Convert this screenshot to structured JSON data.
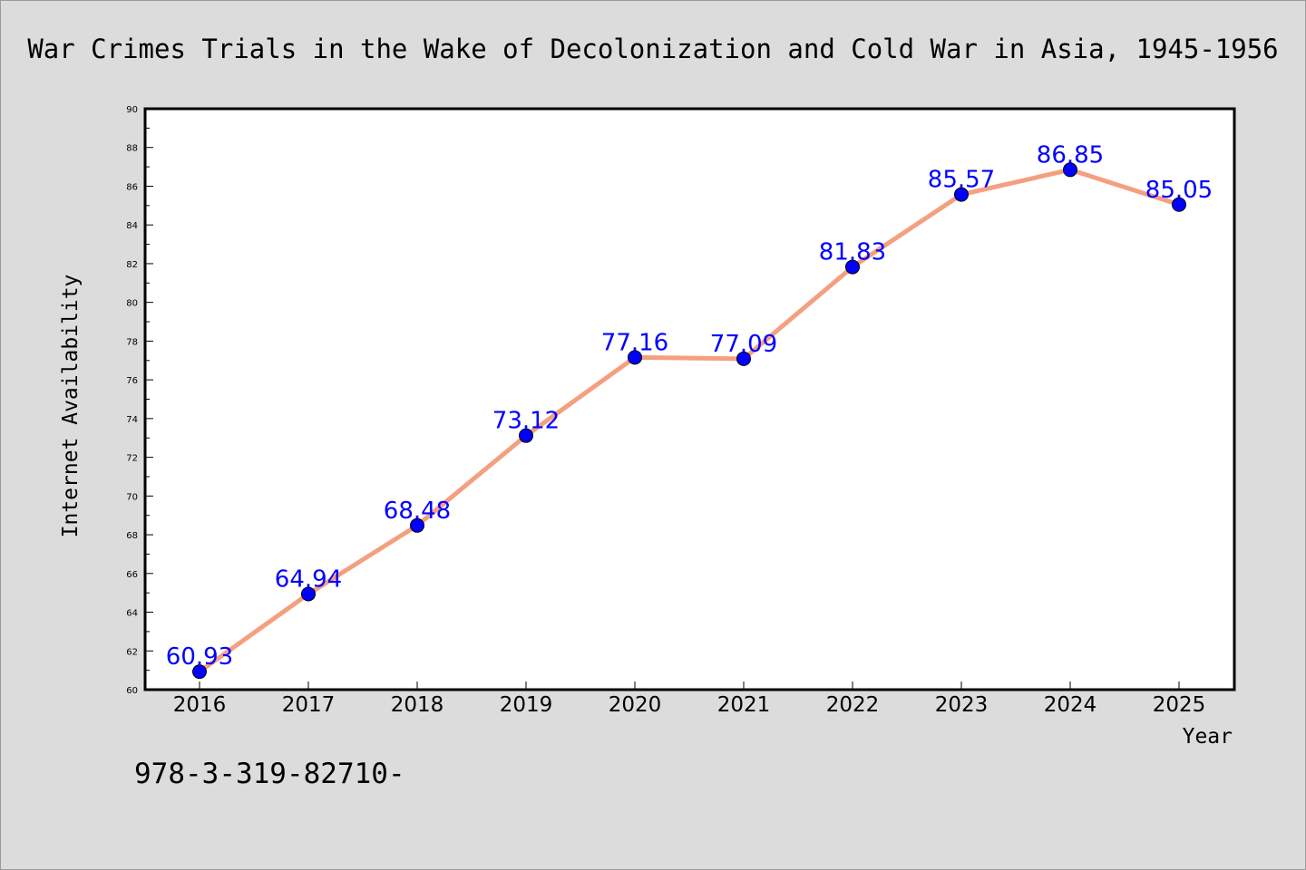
{
  "chart_data": {
    "type": "line",
    "title": "War Crimes Trials in the Wake of Decolonization and Cold War in Asia, 1945-1956",
    "xlabel": "Year",
    "ylabel": "Internet Availability",
    "categories": [
      "2016",
      "2017",
      "2018",
      "2019",
      "2020",
      "2021",
      "2022",
      "2023",
      "2024",
      "2025"
    ],
    "series": [
      {
        "values": [
          60.93,
          64.94,
          68.48,
          73.12,
          77.16,
          77.09,
          81.83,
          85.57,
          86.85,
          85.05
        ],
        "line_color": "#f4a080",
        "marker_color": "#0000ff"
      }
    ],
    "data_labels": [
      "60.93",
      "64.94",
      "68.48",
      "73.12",
      "77.16",
      "77.09",
      "81.83",
      "85.57",
      "86.85",
      "85.05"
    ],
    "ylim": [
      60,
      90
    ],
    "yticks": [
      60,
      62,
      64,
      66,
      68,
      70,
      72,
      74,
      76,
      78,
      80,
      82,
      84,
      86,
      88,
      90
    ],
    "grid": false,
    "legend": "none"
  },
  "footer": {
    "text": "978-3-319-82710-"
  }
}
